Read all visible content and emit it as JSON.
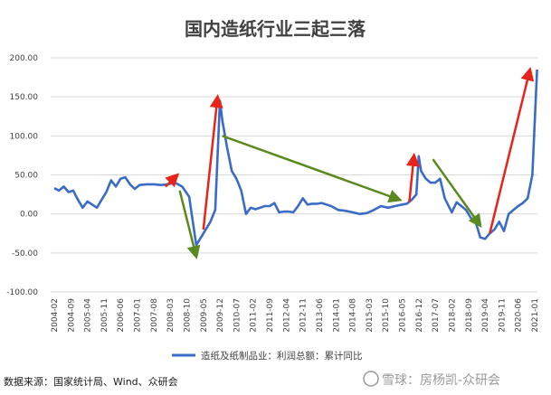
{
  "chart_data": {
    "type": "line",
    "title": "国内造纸行业三起三落",
    "ylim": [
      -100,
      200
    ],
    "y_ticks": [
      "200.00",
      "150.00",
      "100.00",
      "50.00",
      "0.00",
      "-50.00",
      "-100.00"
    ],
    "x_ticks": [
      "2004-02",
      "2004-09",
      "2005-04",
      "2005-11",
      "2006-06",
      "2007-01",
      "2007-08",
      "2008-03",
      "2008-10",
      "2009-05",
      "2009-12",
      "2010-07",
      "2011-02",
      "2011-09",
      "2012-04",
      "2012-11",
      "2013-06",
      "2014-01",
      "2014-08",
      "2015-03",
      "2015-10",
      "2016-05",
      "2016-12",
      "2017-07",
      "2018-02",
      "2018-09",
      "2019-04",
      "2019-11",
      "2020-06",
      "2021-01"
    ],
    "legend": "造纸及纸制品业：利润总额：累计同比",
    "series": [
      {
        "name": "造纸及纸制品业：利润总额：累计同比",
        "color": "#3a6bc7",
        "x": [
          "2004-02",
          "2004-04",
          "2004-06",
          "2004-08",
          "2004-10",
          "2004-12",
          "2005-02",
          "2005-04",
          "2005-06",
          "2005-08",
          "2005-10",
          "2005-12",
          "2006-02",
          "2006-04",
          "2006-06",
          "2006-08",
          "2006-10",
          "2006-12",
          "2007-02",
          "2007-05",
          "2007-08",
          "2007-11",
          "2008-02",
          "2008-05",
          "2008-08",
          "2008-11",
          "2009-02",
          "2009-04",
          "2009-06",
          "2009-08",
          "2009-10",
          "2009-12",
          "2010-01",
          "2010-03",
          "2010-05",
          "2010-07",
          "2010-09",
          "2010-11",
          "2011-01",
          "2011-03",
          "2011-05",
          "2011-07",
          "2011-09",
          "2011-11",
          "2012-01",
          "2012-03",
          "2012-05",
          "2012-07",
          "2012-09",
          "2012-11",
          "2013-01",
          "2013-03",
          "2013-05",
          "2013-07",
          "2013-09",
          "2013-11",
          "2014-02",
          "2014-05",
          "2014-08",
          "2014-11",
          "2015-02",
          "2015-05",
          "2015-08",
          "2015-11",
          "2016-02",
          "2016-05",
          "2016-07",
          "2016-09",
          "2016-11",
          "2016-12",
          "2017-01",
          "2017-03",
          "2017-05",
          "2017-07",
          "2017-09",
          "2017-11",
          "2018-02",
          "2018-04",
          "2018-06",
          "2018-08",
          "2018-10",
          "2018-12",
          "2019-02",
          "2019-04",
          "2019-06",
          "2019-08",
          "2019-10",
          "2019-12",
          "2020-02",
          "2020-04",
          "2020-06",
          "2020-08",
          "2020-10",
          "2020-12",
          "2021-02"
        ],
        "values": [
          33,
          30,
          35,
          28,
          30,
          18,
          8,
          16,
          12,
          8,
          18,
          28,
          43,
          35,
          45,
          47,
          38,
          32,
          37,
          38,
          38,
          37,
          38,
          40,
          35,
          22,
          -40,
          -30,
          -20,
          -10,
          5,
          145,
          120,
          85,
          55,
          45,
          30,
          0,
          8,
          6,
          8,
          10,
          10,
          14,
          2,
          3,
          3,
          2,
          10,
          20,
          12,
          13,
          13,
          14,
          12,
          10,
          5,
          4,
          2,
          0,
          1,
          5,
          10,
          8,
          10,
          12,
          13,
          18,
          25,
          74,
          55,
          45,
          40,
          40,
          45,
          20,
          2,
          15,
          10,
          5,
          -5,
          -10,
          -30,
          -32,
          -25,
          -20,
          -10,
          -22,
          0,
          5,
          10,
          14,
          20,
          50,
          185
        ]
      }
    ],
    "annotations": [
      {
        "type": "arrow",
        "color": "#e8231a",
        "from": {
          "x": "2008-01",
          "y": 35
        },
        "to": {
          "x": "2008-06",
          "y": 50
        }
      },
      {
        "type": "arrow",
        "color": "#5a8a1e",
        "from": {
          "x": "2008-07",
          "y": 30
        },
        "to": {
          "x": "2009-02",
          "y": -55
        }
      },
      {
        "type": "arrow",
        "color": "#e8231a",
        "from": {
          "x": "2009-05",
          "y": -20
        },
        "to": {
          "x": "2009-11",
          "y": 150
        }
      },
      {
        "type": "arrow",
        "color": "#5a8a1e",
        "from": {
          "x": "2010-01",
          "y": 100
        },
        "to": {
          "x": "2016-04",
          "y": 18
        }
      },
      {
        "type": "arrow",
        "color": "#e8231a",
        "from": {
          "x": "2016-08",
          "y": 15
        },
        "to": {
          "x": "2016-10",
          "y": 75
        }
      },
      {
        "type": "arrow",
        "color": "#5a8a1e",
        "from": {
          "x": "2017-06",
          "y": 70
        },
        "to": {
          "x": "2019-02",
          "y": -15
        }
      },
      {
        "type": "arrow",
        "color": "#e8231a",
        "from": {
          "x": "2019-06",
          "y": -25
        },
        "to": {
          "x": "2020-11",
          "y": 185
        }
      }
    ]
  },
  "source_note": "数据来源：国家统计局、Wind、众研会",
  "watermark": "雪球：房杨凯-众研会"
}
